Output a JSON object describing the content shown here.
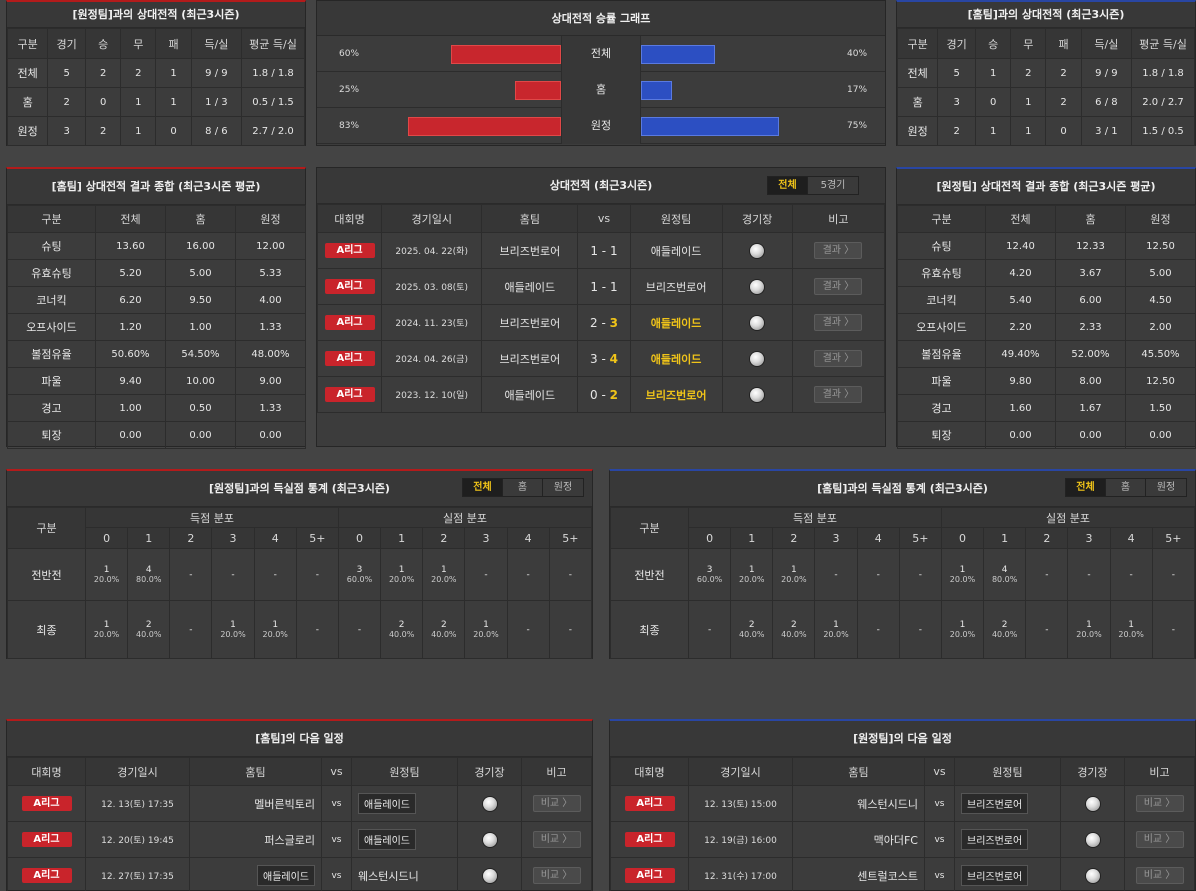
{
  "colors": {
    "win": "#f0c419",
    "league_badge": "#c9242b",
    "bar_home": "#c8262d",
    "bar_away": "#2c4fc2"
  },
  "h2h_left": {
    "title": "[원정팀]과의 상대전적 (최근3시즌)",
    "headers": [
      "구분",
      "경기",
      "승",
      "무",
      "패",
      "득/실",
      "평균 득/실"
    ],
    "rows": [
      [
        "전체",
        "5",
        "2",
        "2",
        "1",
        "9 / 9",
        "1.8 / 1.8"
      ],
      [
        "홈",
        "2",
        "0",
        "1",
        "1",
        "1 / 3",
        "0.5 / 1.5"
      ],
      [
        "원정",
        "3",
        "2",
        "1",
        "0",
        "8 / 6",
        "2.7 / 2.0"
      ]
    ]
  },
  "h2h_right": {
    "title": "[홈팀]과의 상대전적 (최근3시즌)",
    "headers": [
      "구분",
      "경기",
      "승",
      "무",
      "패",
      "득/실",
      "평균 득/실"
    ],
    "rows": [
      [
        "전체",
        "5",
        "1",
        "2",
        "2",
        "9 / 9",
        "1.8 / 1.8"
      ],
      [
        "홈",
        "3",
        "0",
        "1",
        "2",
        "6 / 8",
        "2.0 / 2.7"
      ],
      [
        "원정",
        "2",
        "1",
        "1",
        "0",
        "3 / 1",
        "1.5 / 0.5"
      ]
    ]
  },
  "graph": {
    "title": "상대전적 승률 그래프",
    "rows": [
      {
        "label": "전체",
        "home": "60%",
        "away": "40%",
        "home_v": 60,
        "away_v": 40
      },
      {
        "label": "홈",
        "home": "25%",
        "away": "17%",
        "home_v": 25,
        "away_v": 17
      },
      {
        "label": "원정",
        "home": "83%",
        "away": "75%",
        "home_v": 83,
        "away_v": 75
      }
    ]
  },
  "sum_left": {
    "title": "[홈팀] 상대전적 결과 종합 (최근3시즌 평균)",
    "headers": [
      "구분",
      "전체",
      "홈",
      "원정"
    ],
    "rows": [
      [
        "슈팅",
        "13.60",
        "16.00",
        "12.00"
      ],
      [
        "유효슈팅",
        "5.20",
        "5.00",
        "5.33"
      ],
      [
        "코너킥",
        "6.20",
        "9.50",
        "4.00"
      ],
      [
        "오프사이드",
        "1.20",
        "1.00",
        "1.33"
      ],
      [
        "볼점유율",
        "50.60%",
        "54.50%",
        "48.00%"
      ],
      [
        "파울",
        "9.40",
        "10.00",
        "9.00"
      ],
      [
        "경고",
        "1.00",
        "0.50",
        "1.33"
      ],
      [
        "퇴장",
        "0.00",
        "0.00",
        "0.00"
      ]
    ]
  },
  "sum_right": {
    "title": "[원정팀] 상대전적 결과 종합 (최근3시즌 평균)",
    "headers": [
      "구분",
      "전체",
      "홈",
      "원정"
    ],
    "rows": [
      [
        "슈팅",
        "12.40",
        "12.33",
        "12.50"
      ],
      [
        "유효슈팅",
        "4.20",
        "3.67",
        "5.00"
      ],
      [
        "코너킥",
        "5.40",
        "6.00",
        "4.50"
      ],
      [
        "오프사이드",
        "2.20",
        "2.33",
        "2.00"
      ],
      [
        "볼점유율",
        "49.40%",
        "52.00%",
        "45.50%"
      ],
      [
        "파울",
        "9.80",
        "8.00",
        "12.50"
      ],
      [
        "경고",
        "1.60",
        "1.67",
        "1.50"
      ],
      [
        "퇴장",
        "0.00",
        "0.00",
        "0.00"
      ]
    ]
  },
  "matches": {
    "title": "상대전적 (최근3시즌)",
    "toggle": [
      "전체",
      "5경기"
    ],
    "headers": {
      "league": "대회명",
      "date": "경기일시",
      "home": "홈팀",
      "vs": "vs",
      "away": "원정팀",
      "venue": "경기장",
      "note": "비고"
    },
    "rows": [
      {
        "league": "A리그",
        "date": "2025. 04. 22(화)",
        "home": "브리즈번로어",
        "hs": "1",
        "as": "1",
        "away": "애들레이드",
        "win": "",
        "btn": "결과 〉"
      },
      {
        "league": "A리그",
        "date": "2025. 03. 08(토)",
        "home": "애들레이드",
        "hs": "1",
        "as": "1",
        "away": "브리즈번로어",
        "win": "",
        "btn": "결과 〉"
      },
      {
        "league": "A리그",
        "date": "2024. 11. 23(토)",
        "home": "브리즈번로어",
        "hs": "2",
        "as": "3",
        "away": "애들레이드",
        "win": "away",
        "btn": "결과 〉"
      },
      {
        "league": "A리그",
        "date": "2024. 04. 26(금)",
        "home": "브리즈번로어",
        "hs": "3",
        "as": "4",
        "away": "애들레이드",
        "win": "away",
        "btn": "결과 〉"
      },
      {
        "league": "A리그",
        "date": "2023. 12. 10(일)",
        "home": "애들레이드",
        "hs": "0",
        "as": "2",
        "away": "브리즈번로어",
        "win": "away",
        "btn": "결과 〉"
      }
    ]
  },
  "goals_left": {
    "title": "[원정팀]과의 득실점 통계 (최근3시즌)",
    "toggle": [
      "전체",
      "홈",
      "원정"
    ],
    "label_col": "구분",
    "grp1": "득점 분포",
    "grp2": "실점 분포",
    "cols": [
      "0",
      "1",
      "2",
      "3",
      "4",
      "5+"
    ],
    "rows": [
      {
        "label": "전반전",
        "cells": [
          [
            "1",
            "20.0%"
          ],
          [
            "4",
            "80.0%"
          ],
          [
            "-",
            ""
          ],
          [
            "-",
            ""
          ],
          [
            "-",
            ""
          ],
          [
            "-",
            ""
          ],
          [
            "3",
            "60.0%"
          ],
          [
            "1",
            "20.0%"
          ],
          [
            "1",
            "20.0%"
          ],
          [
            "-",
            ""
          ],
          [
            "-",
            ""
          ],
          [
            "-",
            ""
          ]
        ]
      },
      {
        "label": "최종",
        "cells": [
          [
            "1",
            "20.0%"
          ],
          [
            "2",
            "40.0%"
          ],
          [
            "-",
            ""
          ],
          [
            "1",
            "20.0%"
          ],
          [
            "1",
            "20.0%"
          ],
          [
            "-",
            ""
          ],
          [
            "-",
            ""
          ],
          [
            "2",
            "40.0%"
          ],
          [
            "2",
            "40.0%"
          ],
          [
            "1",
            "20.0%"
          ],
          [
            "-",
            ""
          ],
          [
            "-",
            ""
          ]
        ]
      }
    ]
  },
  "goals_right": {
    "title": "[홈팀]과의 득실점 통계 (최근3시즌)",
    "toggle": [
      "전체",
      "홈",
      "원정"
    ],
    "label_col": "구분",
    "grp1": "득점 분포",
    "grp2": "실점 분포",
    "cols": [
      "0",
      "1",
      "2",
      "3",
      "4",
      "5+"
    ],
    "rows": [
      {
        "label": "전반전",
        "cells": [
          [
            "3",
            "60.0%"
          ],
          [
            "1",
            "20.0%"
          ],
          [
            "1",
            "20.0%"
          ],
          [
            "-",
            ""
          ],
          [
            "-",
            ""
          ],
          [
            "-",
            ""
          ],
          [
            "1",
            "20.0%"
          ],
          [
            "4",
            "80.0%"
          ],
          [
            "-",
            ""
          ],
          [
            "-",
            ""
          ],
          [
            "-",
            ""
          ],
          [
            "-",
            ""
          ]
        ]
      },
      {
        "label": "최종",
        "cells": [
          [
            "-",
            ""
          ],
          [
            "2",
            "40.0%"
          ],
          [
            "2",
            "40.0%"
          ],
          [
            "1",
            "20.0%"
          ],
          [
            "-",
            ""
          ],
          [
            "-",
            ""
          ],
          [
            "1",
            "20.0%"
          ],
          [
            "2",
            "40.0%"
          ],
          [
            "-",
            ""
          ],
          [
            "1",
            "20.0%"
          ],
          [
            "1",
            "20.0%"
          ],
          [
            "-",
            ""
          ]
        ]
      }
    ]
  },
  "sched_left": {
    "title": "[홈팀]의 다음 일정",
    "headers": [
      "대회명",
      "경기일시",
      "홈팀",
      "vs",
      "원정팀",
      "경기장",
      "비고"
    ],
    "rows": [
      {
        "league": "A리그",
        "date": "12. 13(토) 17:35",
        "home": "멜버른빅토리",
        "away": "애들레이드",
        "hl": "away",
        "btn": "비교 〉"
      },
      {
        "league": "A리그",
        "date": "12. 20(토) 19:45",
        "home": "퍼스글로리",
        "away": "애들레이드",
        "hl": "away",
        "btn": "비교 〉"
      },
      {
        "league": "A리그",
        "date": "12. 27(토) 17:35",
        "home": "애들레이드",
        "away": "웨스턴시드니",
        "hl": "home",
        "btn": "비교 〉"
      }
    ]
  },
  "sched_right": {
    "title": "[원정팀]의 다음 일정",
    "headers": [
      "대회명",
      "경기일시",
      "홈팀",
      "vs",
      "원정팀",
      "경기장",
      "비고"
    ],
    "rows": [
      {
        "league": "A리그",
        "date": "12. 13(토) 15:00",
        "home": "웨스턴시드니",
        "away": "브리즈번로어",
        "hl": "away",
        "btn": "비교 〉"
      },
      {
        "league": "A리그",
        "date": "12. 19(금) 16:00",
        "home": "맥아더FC",
        "away": "브리즈번로어",
        "hl": "away",
        "btn": "비교 〉"
      },
      {
        "league": "A리그",
        "date": "12. 31(수) 17:00",
        "home": "센트럴코스트",
        "away": "브리즈번로어",
        "hl": "away",
        "btn": "비교 〉"
      }
    ]
  }
}
